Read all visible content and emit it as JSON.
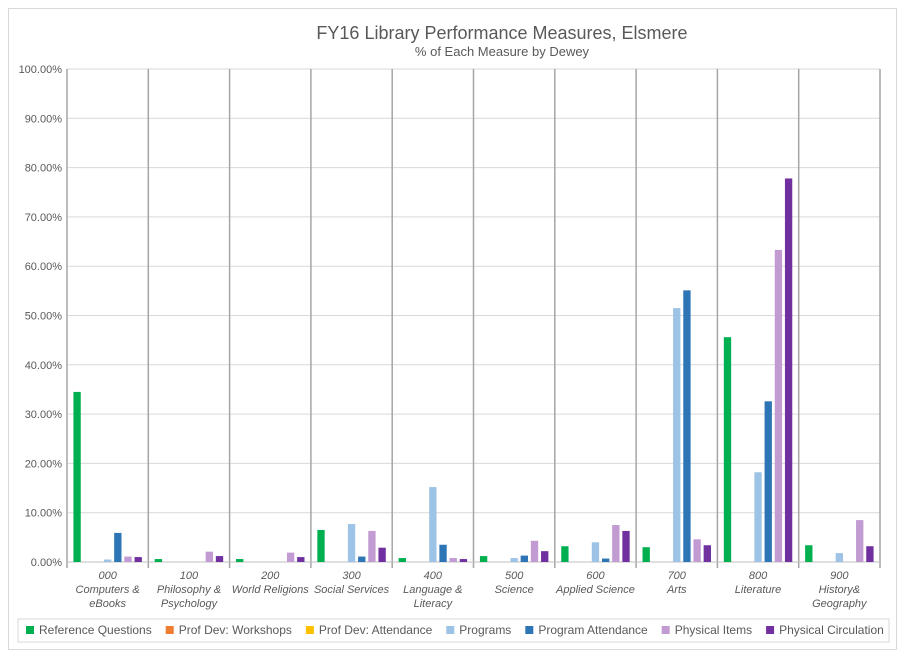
{
  "chart_data": {
    "type": "bar",
    "title": "FY16 Library Performance Measures, Elsmere",
    "subtitle": "% of Each Measure by Dewey",
    "xlabel": "",
    "ylabel": "",
    "ylim": [
      0,
      100
    ],
    "y_ticks": [
      "0.00%",
      "10.00%",
      "20.00%",
      "30.00%",
      "40.00%",
      "50.00%",
      "60.00%",
      "70.00%",
      "80.00%",
      "90.00%",
      "100.00%"
    ],
    "legend_position": "bottom",
    "categories": [
      {
        "code": "000",
        "name": [
          "Computers &",
          "eBooks"
        ]
      },
      {
        "code": "100",
        "name": [
          "Philosophy &",
          "Psychology"
        ]
      },
      {
        "code": "200",
        "name": [
          "World Religions"
        ]
      },
      {
        "code": "300",
        "name": [
          "Social Services"
        ]
      },
      {
        "code": "400",
        "name": [
          "Language &",
          "Literacy"
        ]
      },
      {
        "code": "500",
        "name": [
          "Science"
        ]
      },
      {
        "code": "600",
        "name": [
          "Applied Science"
        ]
      },
      {
        "code": "700",
        "name": [
          "Arts"
        ]
      },
      {
        "code": "800",
        "name": [
          "Literature"
        ]
      },
      {
        "code": "900",
        "name": [
          "History&",
          "Geography"
        ]
      }
    ],
    "series": [
      {
        "name": "Reference Questions",
        "color": "#00b050",
        "values": [
          34.5,
          0.6,
          0.6,
          6.5,
          0.8,
          1.2,
          3.2,
          3.0,
          45.6,
          3.4
        ]
      },
      {
        "name": "Prof Dev: Workshops",
        "color": "#ed7d31",
        "values": [
          0,
          0,
          0,
          0,
          0,
          0,
          0,
          0,
          0,
          0
        ]
      },
      {
        "name": "Prof Dev: Attendance",
        "color": "#ffc000",
        "values": [
          0,
          0,
          0,
          0,
          0,
          0,
          0,
          0,
          0,
          0
        ]
      },
      {
        "name": "Programs",
        "color": "#9dc3e6",
        "values": [
          0.5,
          0,
          0,
          7.7,
          15.2,
          0.8,
          4.0,
          51.5,
          18.2,
          1.8
        ]
      },
      {
        "name": "Program Attendance",
        "color": "#2e75b6",
        "values": [
          5.9,
          0,
          0,
          1.1,
          3.5,
          1.3,
          0.7,
          55.1,
          32.6,
          0
        ]
      },
      {
        "name": "Physical Items",
        "color": "#c39bd3",
        "values": [
          1.1,
          2.1,
          1.9,
          6.3,
          0.8,
          4.3,
          7.5,
          4.6,
          63.3,
          8.5
        ]
      },
      {
        "name": "Physical Circulation",
        "color": "#7030a0",
        "values": [
          1.0,
          1.2,
          1.0,
          2.9,
          0.6,
          2.2,
          6.3,
          3.4,
          77.8,
          3.2
        ]
      }
    ]
  }
}
